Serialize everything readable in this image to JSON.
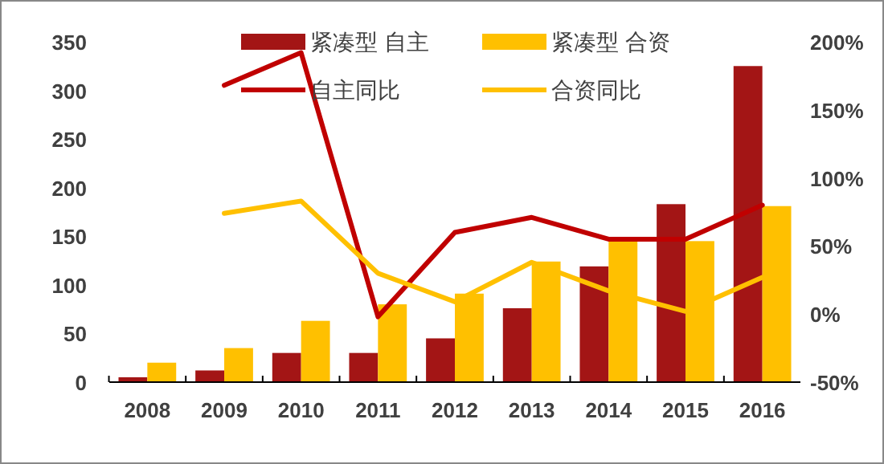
{
  "chart_data": {
    "type": "bar",
    "categories": [
      "2008",
      "2009",
      "2010",
      "2011",
      "2012",
      "2013",
      "2014",
      "2015",
      "2016"
    ],
    "series": [
      {
        "name": "紧凑型  自主",
        "color": "#a31515",
        "values": [
          5,
          12,
          30,
          30,
          45,
          76,
          119,
          183,
          325
        ]
      },
      {
        "name": "紧凑型  合资",
        "color": "#ffc000",
        "values": [
          20,
          35,
          63,
          80,
          91,
          124,
          145,
          145,
          181
        ]
      },
      {
        "name": "自主同比",
        "type": "line",
        "axis": "y2",
        "color": "#c00000",
        "values": [
          null,
          168,
          192,
          -2,
          60,
          71,
          55,
          55,
          80
        ]
      },
      {
        "name": "合资同比",
        "type": "line",
        "axis": "y2",
        "color": "#ffc000",
        "values": [
          null,
          74,
          83,
          30,
          9,
          38,
          17,
          2,
          27
        ]
      }
    ],
    "ylim": [
      0,
      350
    ],
    "yticks": [
      0,
      50,
      100,
      150,
      200,
      250,
      300,
      350
    ],
    "y2lim": [
      -50,
      200
    ],
    "y2ticks": [
      {
        "value": -50,
        "label": "-50%"
      },
      {
        "value": 0,
        "label": "0%"
      },
      {
        "value": 50,
        "label": "50%"
      },
      {
        "value": 100,
        "label": "100%"
      },
      {
        "value": 150,
        "label": "150%"
      },
      {
        "value": 200,
        "label": "200%"
      }
    ],
    "legend": "top",
    "grid": false
  }
}
